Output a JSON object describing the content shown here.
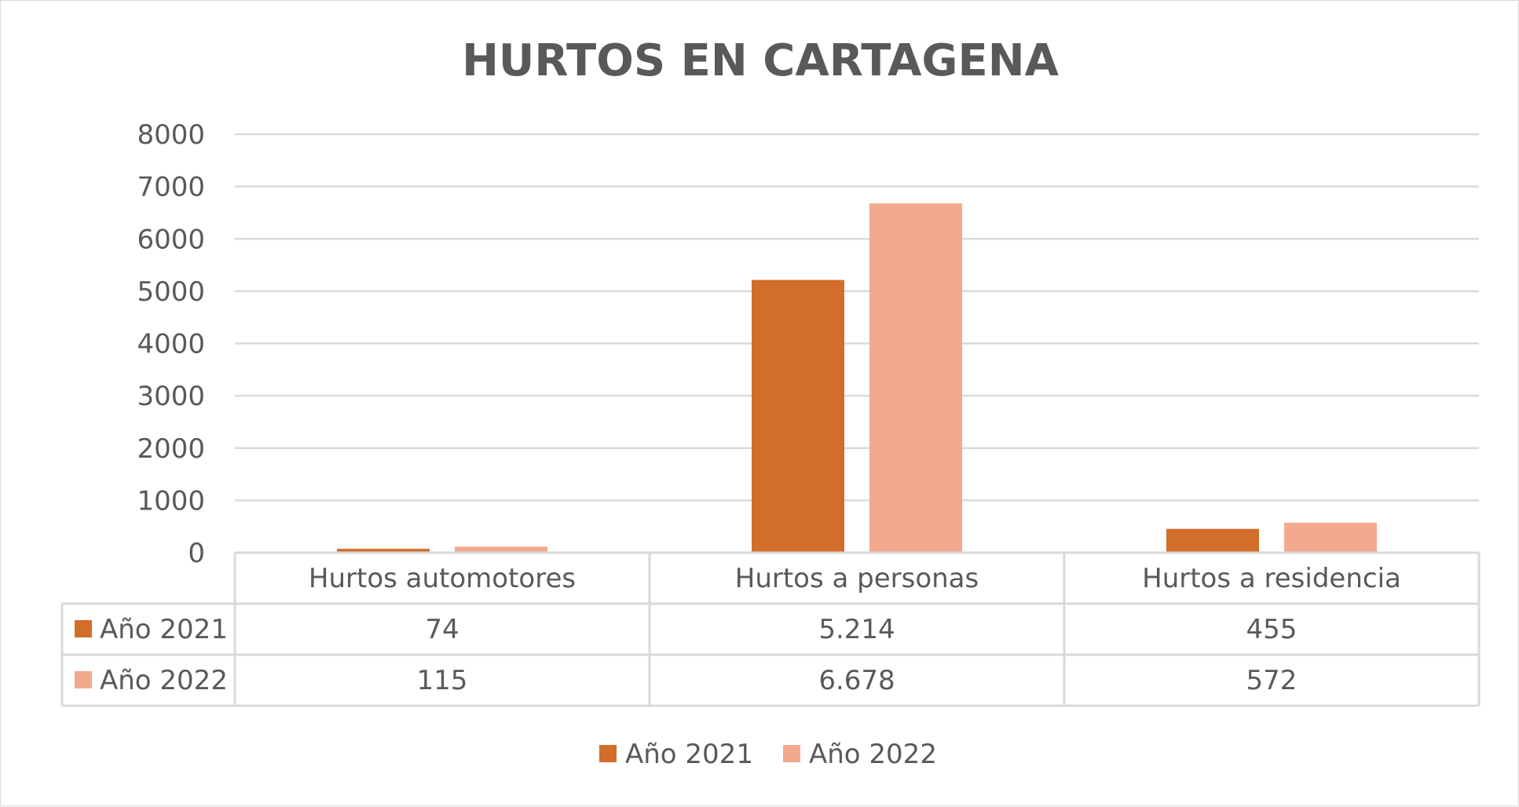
{
  "chart_data": {
    "type": "bar",
    "title": "HURTOS EN CARTAGENA",
    "categories": [
      "Hurtos automotores",
      "Hurtos a personas",
      "Hurtos a residencia"
    ],
    "series": [
      {
        "name": "Año 2021",
        "color": "#d26d2a",
        "values": [
          74,
          5214,
          455
        ],
        "labels": [
          "74",
          "5.214",
          "455"
        ]
      },
      {
        "name": "Año 2022",
        "color": "#f2a98d",
        "values": [
          115,
          6678,
          572
        ],
        "labels": [
          "115",
          "6.678",
          "572"
        ]
      }
    ],
    "ylim": [
      0,
      8000
    ],
    "yticks": [
      "0",
      "1000",
      "2000",
      "3000",
      "4000",
      "5000",
      "6000",
      "7000",
      "8000"
    ],
    "grid": true,
    "data_table": true,
    "legend_position": "bottom",
    "xlabel": "",
    "ylabel": ""
  }
}
